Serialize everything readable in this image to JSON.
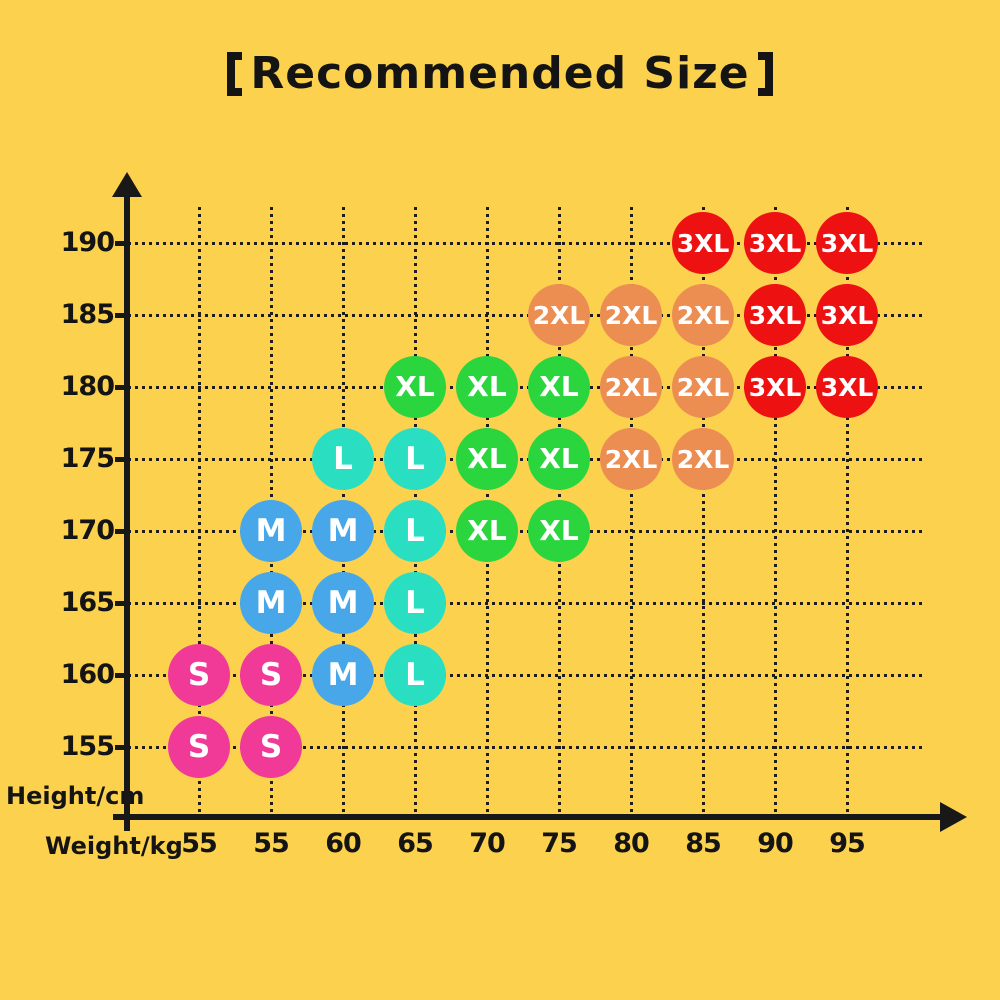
{
  "title": "【Recommended Size】",
  "title_inner": "Recommended Size",
  "colors": {
    "background": "#FBD14E",
    "axis": "#181818",
    "grid": "#1C1C1C",
    "label_text": "#141414",
    "dot_text": "#FFFFFF",
    "sizes": {
      "S": "#F13A98",
      "M": "#48A7E9",
      "L": "#2ADFC1",
      "XL": "#2BD53E",
      "2XL": "#EC8D52",
      "3XL": "#EE1111"
    }
  },
  "chart_data": {
    "type": "scatter",
    "title": "【Recommended Size】",
    "xlabel": "Weight/kg",
    "ylabel": "Height/cm",
    "x_tick_labels": [
      "55",
      "55",
      "60",
      "65",
      "70",
      "75",
      "80",
      "85",
      "90",
      "95"
    ],
    "y_tick_labels": [
      "190",
      "185",
      "180",
      "175",
      "170",
      "165",
      "160",
      "155"
    ],
    "grid": "dotted",
    "legend": false,
    "points": [
      {
        "col": 7,
        "row": 0,
        "weight": "85",
        "height": "190",
        "size": "3XL"
      },
      {
        "col": 8,
        "row": 0,
        "weight": "90",
        "height": "190",
        "size": "3XL"
      },
      {
        "col": 9,
        "row": 0,
        "weight": "95",
        "height": "190",
        "size": "3XL"
      },
      {
        "col": 5,
        "row": 1,
        "weight": "75",
        "height": "185",
        "size": "2XL"
      },
      {
        "col": 6,
        "row": 1,
        "weight": "80",
        "height": "185",
        "size": "2XL"
      },
      {
        "col": 7,
        "row": 1,
        "weight": "85",
        "height": "185",
        "size": "2XL"
      },
      {
        "col": 8,
        "row": 1,
        "weight": "90",
        "height": "185",
        "size": "3XL"
      },
      {
        "col": 9,
        "row": 1,
        "weight": "95",
        "height": "185",
        "size": "3XL"
      },
      {
        "col": 3,
        "row": 2,
        "weight": "65",
        "height": "180",
        "size": "XL"
      },
      {
        "col": 4,
        "row": 2,
        "weight": "70",
        "height": "180",
        "size": "XL"
      },
      {
        "col": 5,
        "row": 2,
        "weight": "75",
        "height": "180",
        "size": "XL"
      },
      {
        "col": 6,
        "row": 2,
        "weight": "80",
        "height": "180",
        "size": "2XL"
      },
      {
        "col": 7,
        "row": 2,
        "weight": "85",
        "height": "180",
        "size": "2XL"
      },
      {
        "col": 8,
        "row": 2,
        "weight": "90",
        "height": "180",
        "size": "3XL"
      },
      {
        "col": 9,
        "row": 2,
        "weight": "95",
        "height": "180",
        "size": "3XL"
      },
      {
        "col": 2,
        "row": 3,
        "weight": "60",
        "height": "175",
        "size": "L"
      },
      {
        "col": 3,
        "row": 3,
        "weight": "65",
        "height": "175",
        "size": "L"
      },
      {
        "col": 4,
        "row": 3,
        "weight": "70",
        "height": "175",
        "size": "XL"
      },
      {
        "col": 5,
        "row": 3,
        "weight": "75",
        "height": "175",
        "size": "XL"
      },
      {
        "col": 6,
        "row": 3,
        "weight": "80",
        "height": "175",
        "size": "2XL"
      },
      {
        "col": 7,
        "row": 3,
        "weight": "85",
        "height": "175",
        "size": "2XL"
      },
      {
        "col": 1,
        "row": 4,
        "weight": "55",
        "height": "170",
        "size": "M"
      },
      {
        "col": 2,
        "row": 4,
        "weight": "60",
        "height": "170",
        "size": "M"
      },
      {
        "col": 3,
        "row": 4,
        "weight": "65",
        "height": "170",
        "size": "L"
      },
      {
        "col": 4,
        "row": 4,
        "weight": "70",
        "height": "170",
        "size": "XL"
      },
      {
        "col": 5,
        "row": 4,
        "weight": "75",
        "height": "170",
        "size": "XL"
      },
      {
        "col": 1,
        "row": 5,
        "weight": "55",
        "height": "165",
        "size": "M"
      },
      {
        "col": 2,
        "row": 5,
        "weight": "60",
        "height": "165",
        "size": "M"
      },
      {
        "col": 3,
        "row": 5,
        "weight": "65",
        "height": "165",
        "size": "L"
      },
      {
        "col": 0,
        "row": 6,
        "weight": "55",
        "height": "160",
        "size": "S"
      },
      {
        "col": 1,
        "row": 6,
        "weight": "55",
        "height": "160",
        "size": "S"
      },
      {
        "col": 2,
        "row": 6,
        "weight": "60",
        "height": "160",
        "size": "M"
      },
      {
        "col": 3,
        "row": 6,
        "weight": "65",
        "height": "160",
        "size": "L"
      },
      {
        "col": 0,
        "row": 7,
        "weight": "55",
        "height": "155",
        "size": "S"
      },
      {
        "col": 1,
        "row": 7,
        "weight": "55",
        "height": "155",
        "size": "S"
      }
    ]
  }
}
